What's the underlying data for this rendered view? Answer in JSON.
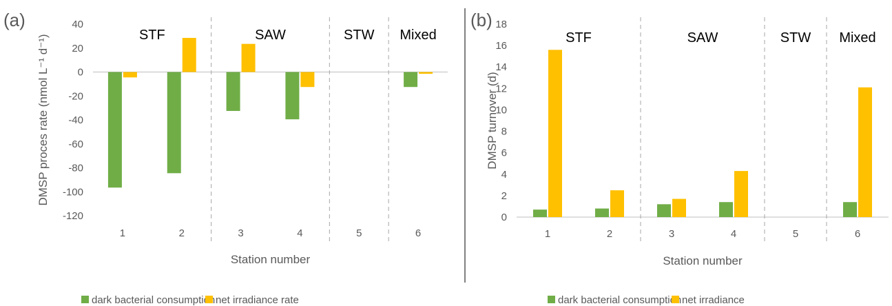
{
  "colors": {
    "dark": "#70ad47",
    "net": "#ffc000",
    "axis": "#bfbfbf",
    "divider": "#a6a6a6"
  },
  "chart_data": [
    {
      "type": "bar",
      "panel_label": "(a)",
      "categories": [
        "1",
        "2",
        "3",
        "4",
        "5",
        "6"
      ],
      "series": [
        {
          "name": "dark bacterial consumption",
          "values": [
            -96.5,
            -84.5,
            -32.5,
            -39.5,
            0,
            -12.5
          ]
        },
        {
          "name": "net irradiance rate",
          "values": [
            -4.5,
            28.5,
            23.5,
            -12.5,
            0,
            -1.5
          ]
        }
      ],
      "xlabel": "Station number",
      "ylabel": "DMSP proces rate (nmol L⁻¹ d⁻¹)",
      "ylim": [
        -120,
        40
      ],
      "yticks": [
        40,
        20,
        0,
        -20,
        -40,
        -60,
        -80,
        -100,
        -120
      ],
      "regions": [
        {
          "label": "STF",
          "from": 0,
          "to": 1
        },
        {
          "label": "SAW",
          "from": 2,
          "to": 3
        },
        {
          "label": "STW",
          "from": 4,
          "to": 4
        },
        {
          "label": "Mixed",
          "from": 5,
          "to": 5
        }
      ],
      "legend_position": "bottom",
      "grid": false
    },
    {
      "type": "bar",
      "panel_label": "(b)",
      "categories": [
        "1",
        "2",
        "3",
        "4",
        "5",
        "6"
      ],
      "series": [
        {
          "name": "dark bacterial consumption",
          "values": [
            0.7,
            0.8,
            1.2,
            1.4,
            0,
            1.4
          ]
        },
        {
          "name": "net irradiance",
          "values": [
            15.6,
            2.5,
            1.7,
            4.3,
            0,
            12.1
          ]
        }
      ],
      "xlabel": "Station number",
      "ylabel": "DMSP turnover (d)",
      "ylim": [
        0,
        18
      ],
      "yticks": [
        18,
        16,
        14,
        12,
        10,
        8,
        6,
        4,
        2,
        0
      ],
      "regions": [
        {
          "label": "STF",
          "from": 0,
          "to": 1
        },
        {
          "label": "SAW",
          "from": 2,
          "to": 3
        },
        {
          "label": "STW",
          "from": 4,
          "to": 4
        },
        {
          "label": "Mixed",
          "from": 5,
          "to": 5
        }
      ],
      "legend_position": "bottom",
      "grid": false
    }
  ]
}
